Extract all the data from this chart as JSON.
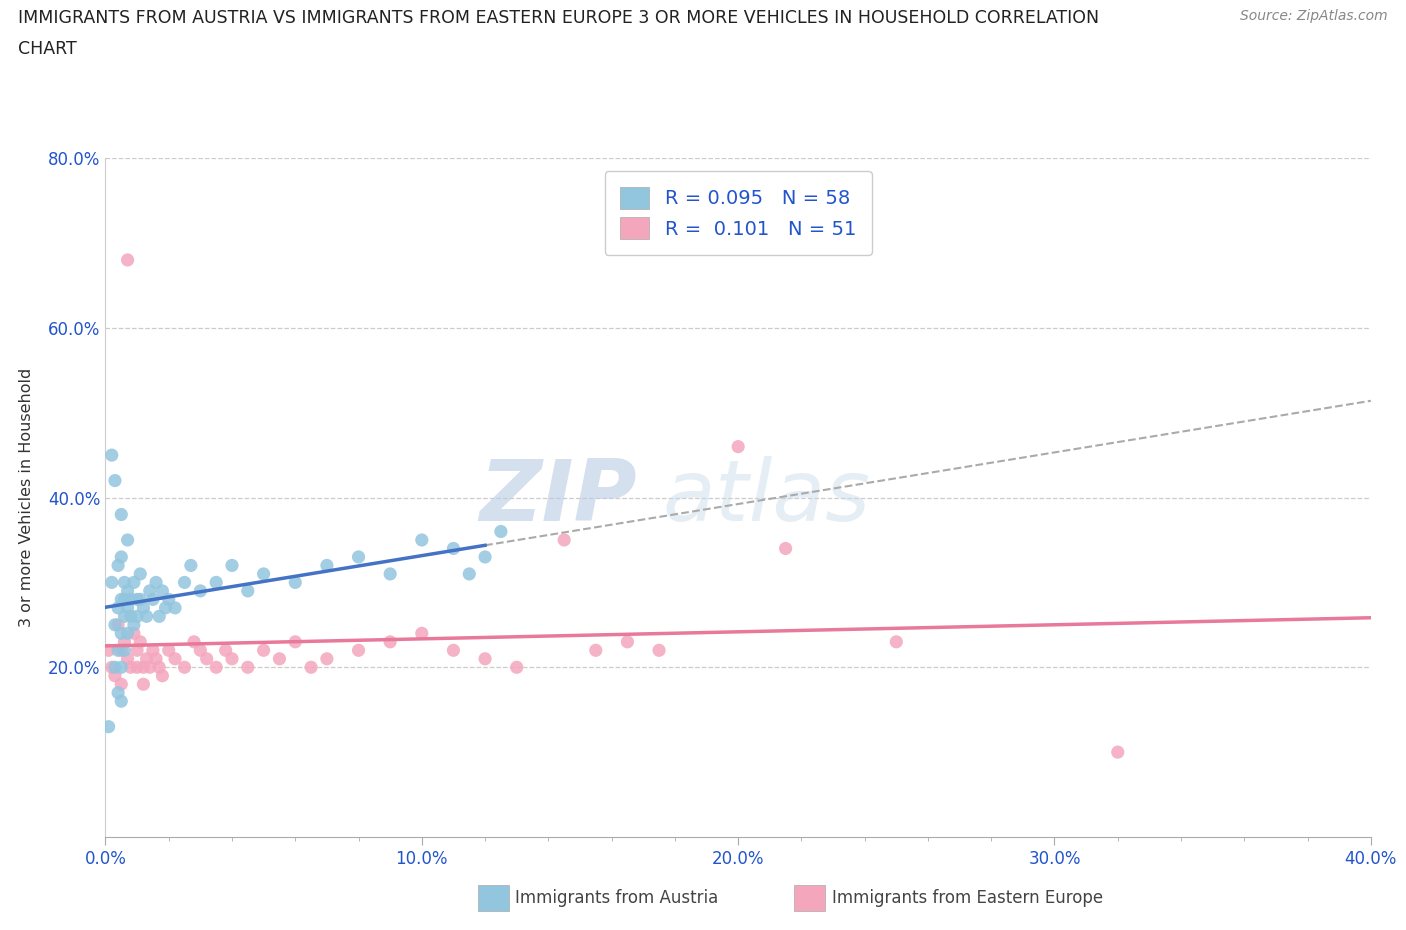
{
  "title_line1": "IMMIGRANTS FROM AUSTRIA VS IMMIGRANTS FROM EASTERN EUROPE 3 OR MORE VEHICLES IN HOUSEHOLD CORRELATION",
  "title_line2": "CHART",
  "source_text": "Source: ZipAtlas.com",
  "ylabel": "3 or more Vehicles in Household",
  "xlim": [
    0.0,
    0.4
  ],
  "ylim": [
    0.0,
    0.8
  ],
  "xtick_labels": [
    "0.0%",
    "",
    "",
    "",
    "",
    "10.0%",
    "",
    "",
    "",
    "",
    "20.0%",
    "",
    "",
    "",
    "",
    "30.0%",
    "",
    "",
    "",
    "",
    "40.0%"
  ],
  "xtick_vals": [
    0.0,
    0.02,
    0.04,
    0.06,
    0.08,
    0.1,
    0.12,
    0.14,
    0.16,
    0.18,
    0.2,
    0.22,
    0.24,
    0.26,
    0.28,
    0.3,
    0.32,
    0.34,
    0.36,
    0.38,
    0.4
  ],
  "xtick_major_labels": [
    "0.0%",
    "10.0%",
    "20.0%",
    "30.0%",
    "40.0%"
  ],
  "xtick_major_vals": [
    0.0,
    0.1,
    0.2,
    0.3,
    0.4
  ],
  "ytick_labels": [
    "20.0%",
    "40.0%",
    "60.0%",
    "80.0%"
  ],
  "ytick_vals": [
    0.2,
    0.4,
    0.6,
    0.8
  ],
  "R_austria": 0.095,
  "N_austria": 58,
  "R_eastern": 0.101,
  "N_eastern": 51,
  "color_austria": "#92c5de",
  "color_eastern": "#f4a6bd",
  "color_blue_text": "#2255cc",
  "color_austria_line": "#4472c4",
  "color_eastern_line": "#e8799a",
  "color_dashed": "#aaaaaa",
  "austria_x": [
    0.001,
    0.002,
    0.002,
    0.003,
    0.003,
    0.003,
    0.004,
    0.004,
    0.004,
    0.004,
    0.005,
    0.005,
    0.005,
    0.005,
    0.005,
    0.005,
    0.006,
    0.006,
    0.006,
    0.006,
    0.007,
    0.007,
    0.007,
    0.007,
    0.008,
    0.008,
    0.009,
    0.009,
    0.01,
    0.01,
    0.011,
    0.011,
    0.012,
    0.013,
    0.014,
    0.015,
    0.016,
    0.017,
    0.018,
    0.019,
    0.02,
    0.022,
    0.025,
    0.027,
    0.03,
    0.035,
    0.04,
    0.045,
    0.05,
    0.06,
    0.07,
    0.08,
    0.09,
    0.1,
    0.11,
    0.115,
    0.12,
    0.125
  ],
  "austria_y": [
    0.13,
    0.45,
    0.3,
    0.42,
    0.25,
    0.2,
    0.27,
    0.32,
    0.22,
    0.17,
    0.38,
    0.28,
    0.24,
    0.2,
    0.33,
    0.16,
    0.3,
    0.28,
    0.26,
    0.22,
    0.35,
    0.27,
    0.24,
    0.29,
    0.28,
    0.26,
    0.3,
    0.25,
    0.28,
    0.26,
    0.31,
    0.28,
    0.27,
    0.26,
    0.29,
    0.28,
    0.3,
    0.26,
    0.29,
    0.27,
    0.28,
    0.27,
    0.3,
    0.32,
    0.29,
    0.3,
    0.32,
    0.29,
    0.31,
    0.3,
    0.32,
    0.33,
    0.31,
    0.35,
    0.34,
    0.31,
    0.33,
    0.36
  ],
  "eastern_x": [
    0.001,
    0.002,
    0.003,
    0.004,
    0.005,
    0.005,
    0.006,
    0.007,
    0.007,
    0.008,
    0.009,
    0.01,
    0.01,
    0.011,
    0.012,
    0.012,
    0.013,
    0.014,
    0.015,
    0.016,
    0.017,
    0.018,
    0.02,
    0.022,
    0.025,
    0.028,
    0.03,
    0.032,
    0.035,
    0.038,
    0.04,
    0.045,
    0.05,
    0.055,
    0.06,
    0.065,
    0.07,
    0.08,
    0.09,
    0.1,
    0.11,
    0.12,
    0.13,
    0.145,
    0.155,
    0.165,
    0.175,
    0.2,
    0.215,
    0.25,
    0.32
  ],
  "eastern_y": [
    0.22,
    0.2,
    0.19,
    0.25,
    0.22,
    0.18,
    0.23,
    0.68,
    0.21,
    0.2,
    0.24,
    0.22,
    0.2,
    0.23,
    0.2,
    0.18,
    0.21,
    0.2,
    0.22,
    0.21,
    0.2,
    0.19,
    0.22,
    0.21,
    0.2,
    0.23,
    0.22,
    0.21,
    0.2,
    0.22,
    0.21,
    0.2,
    0.22,
    0.21,
    0.23,
    0.2,
    0.21,
    0.22,
    0.23,
    0.24,
    0.22,
    0.21,
    0.2,
    0.35,
    0.22,
    0.23,
    0.22,
    0.46,
    0.34,
    0.23,
    0.1
  ],
  "blue_line_x_start": 0.0,
  "blue_line_x_end": 0.12,
  "dashed_line_x_start": 0.12,
  "dashed_line_x_end": 0.4,
  "pink_line_x_start": 0.0,
  "pink_line_x_end": 0.4
}
